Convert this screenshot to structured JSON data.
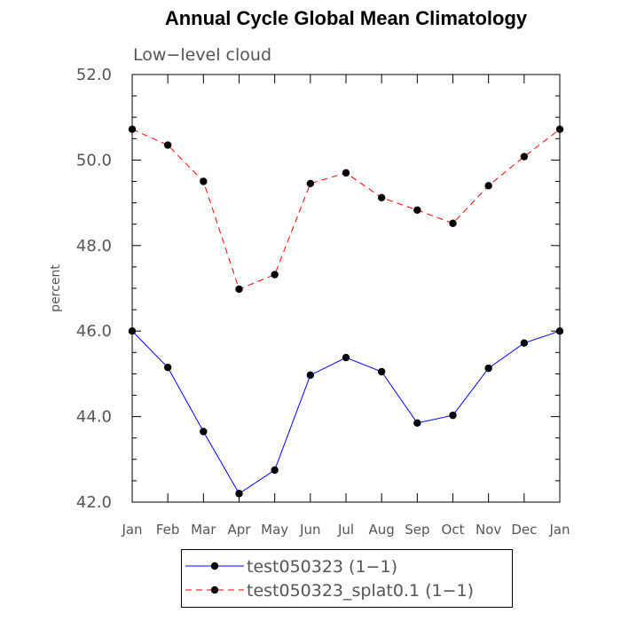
{
  "chart_data": {
    "type": "line",
    "title": "Annual Cycle Global Mean Climatology",
    "subtitle": "Low−level cloud",
    "xlabel": "",
    "ylabel": "percent",
    "ylim": [
      42.0,
      52.0
    ],
    "yticks": [
      "42.0",
      "44.0",
      "46.0",
      "48.0",
      "50.0",
      "52.0"
    ],
    "categories": [
      "Jan",
      "Feb",
      "Mar",
      "Apr",
      "May",
      "Jun",
      "Jul",
      "Aug",
      "Sep",
      "Oct",
      "Nov",
      "Dec",
      "Jan"
    ],
    "series": [
      {
        "name": "test050323 (1−1)",
        "color": "#0000ff",
        "dash": "solid",
        "values": [
          46.0,
          45.15,
          43.65,
          42.2,
          42.75,
          44.97,
          45.38,
          45.05,
          43.85,
          44.03,
          45.13,
          45.72,
          46.0
        ]
      },
      {
        "name": "test050323_splat0.1 (1−1)",
        "color": "#ff0000",
        "dash": "dashed",
        "values": [
          50.72,
          50.35,
          49.5,
          46.98,
          47.32,
          49.45,
          49.7,
          49.12,
          48.83,
          48.52,
          49.4,
          50.08,
          50.72
        ]
      }
    ],
    "legend_position": "bottom"
  }
}
